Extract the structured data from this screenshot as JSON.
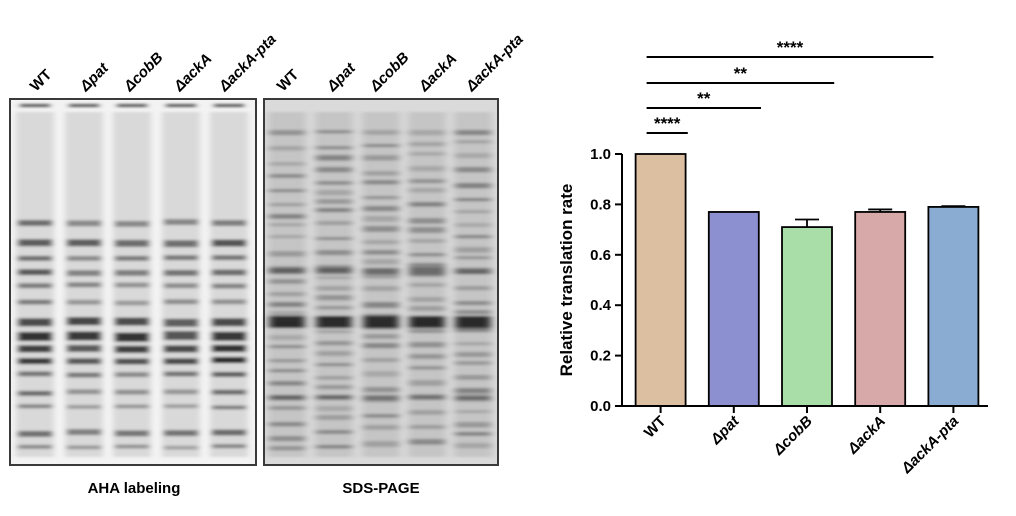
{
  "gels": {
    "lanes": [
      "WT",
      "Δpat",
      "ΔcobB",
      "ΔackA",
      "ΔackA-pta"
    ],
    "panel1_caption": "AHA labeling",
    "panel2_caption": "SDS-PAGE"
  },
  "chart_data": {
    "type": "bar",
    "categories": [
      "WT",
      "Δpat",
      "ΔcobB",
      "ΔackA",
      "ΔackA-pta"
    ],
    "values": [
      1.0,
      0.77,
      0.71,
      0.77,
      0.79
    ],
    "errors": [
      0,
      0,
      0.03,
      0.01,
      0.003
    ],
    "colors": [
      "#dcbea1",
      "#8c90d0",
      "#a9dea9",
      "#d7aaa9",
      "#8aabd2"
    ],
    "ylabel": "Relative translation rate",
    "xlabel": "",
    "ylim": [
      0,
      1.0
    ],
    "yticks": [
      "0.0",
      "0.2",
      "0.4",
      "0.6",
      "0.8",
      "1.0"
    ],
    "significance": [
      {
        "from": "WT",
        "to": "Δpat",
        "label": "****"
      },
      {
        "from": "WT",
        "to": "ΔcobB",
        "label": "**"
      },
      {
        "from": "WT",
        "to": "ΔackA",
        "label": "**"
      },
      {
        "from": "WT",
        "to": "ΔackA-pta",
        "label": "****"
      }
    ]
  }
}
